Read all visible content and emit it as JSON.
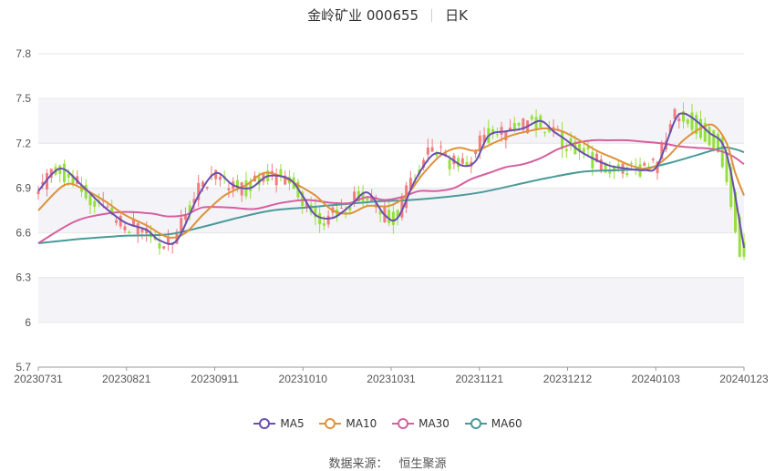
{
  "title": {
    "stock": "金岭矿业 000655",
    "period": "日K"
  },
  "legend": {
    "ma5": "MA5",
    "ma10": "MA10",
    "ma30": "MA30",
    "ma60": "MA60"
  },
  "source": {
    "label": "数据来源：",
    "name": "恒生聚源"
  },
  "colors": {
    "up": "#f07d7d",
    "down": "#95e03b",
    "ma5": "#6a4faf",
    "ma10": "#e0913a",
    "ma30": "#d65f9f",
    "ma60": "#4a9a9a",
    "grid": "#e6e6e6",
    "band": "#f4f4f8"
  },
  "chart_data": {
    "type": "candlestick",
    "ylim": [
      5.7,
      7.8
    ],
    "y_ticks": [
      "5.7",
      "6",
      "6.3",
      "6.6",
      "6.9",
      "7.2",
      "7.5",
      "7.8"
    ],
    "x_ticks": [
      "20230731",
      "20230821",
      "20230911",
      "20231010",
      "20231031",
      "20231121",
      "20231212",
      "20240103",
      "20240123"
    ],
    "ma_points": {
      "MA5": [
        [
          0,
          6.88
        ],
        [
          5,
          7.03
        ],
        [
          10,
          6.92
        ],
        [
          15,
          6.78
        ],
        [
          20,
          6.67
        ],
        [
          25,
          6.62
        ],
        [
          28,
          6.55
        ],
        [
          32,
          6.55
        ],
        [
          37,
          6.85
        ],
        [
          41,
          7.0
        ],
        [
          45,
          6.92
        ],
        [
          49,
          6.9
        ],
        [
          53,
          6.98
        ],
        [
          58,
          6.96
        ],
        [
          61,
          6.85
        ],
        [
          64,
          6.72
        ],
        [
          68,
          6.7
        ],
        [
          72,
          6.78
        ],
        [
          76,
          6.87
        ],
        [
          80,
          6.72
        ],
        [
          83,
          6.7
        ],
        [
          87,
          6.95
        ],
        [
          91,
          7.12
        ],
        [
          94,
          7.12
        ],
        [
          98,
          7.05
        ],
        [
          101,
          7.08
        ],
        [
          104,
          7.25
        ],
        [
          108,
          7.28
        ],
        [
          112,
          7.3
        ],
        [
          116,
          7.35
        ],
        [
          119,
          7.28
        ],
        [
          122,
          7.22
        ],
        [
          125,
          7.15
        ],
        [
          128,
          7.1
        ],
        [
          132,
          7.05
        ],
        [
          136,
          7.03
        ],
        [
          140,
          7.02
        ],
        [
          143,
          7.05
        ],
        [
          147,
          7.35
        ],
        [
          149,
          7.4
        ],
        [
          152,
          7.35
        ],
        [
          155,
          7.27
        ],
        [
          158,
          7.2
        ],
        [
          160,
          7.0
        ],
        [
          163,
          6.5
        ]
      ],
      "MA10": [
        [
          0,
          6.75
        ],
        [
          6,
          6.92
        ],
        [
          10,
          6.9
        ],
        [
          15,
          6.82
        ],
        [
          20,
          6.72
        ],
        [
          25,
          6.65
        ],
        [
          30,
          6.57
        ],
        [
          34,
          6.6
        ],
        [
          38,
          6.72
        ],
        [
          43,
          6.85
        ],
        [
          48,
          6.92
        ],
        [
          52,
          7.0
        ],
        [
          56,
          6.98
        ],
        [
          60,
          6.92
        ],
        [
          64,
          6.85
        ],
        [
          68,
          6.75
        ],
        [
          72,
          6.73
        ],
        [
          76,
          6.78
        ],
        [
          81,
          6.78
        ],
        [
          85,
          6.85
        ],
        [
          89,
          7.0
        ],
        [
          93,
          7.12
        ],
        [
          97,
          7.17
        ],
        [
          101,
          7.15
        ],
        [
          105,
          7.2
        ],
        [
          109,
          7.25
        ],
        [
          113,
          7.28
        ],
        [
          117,
          7.3
        ],
        [
          121,
          7.28
        ],
        [
          125,
          7.22
        ],
        [
          129,
          7.15
        ],
        [
          133,
          7.1
        ],
        [
          137,
          7.05
        ],
        [
          141,
          7.03
        ],
        [
          145,
          7.1
        ],
        [
          149,
          7.22
        ],
        [
          153,
          7.3
        ],
        [
          156,
          7.32
        ],
        [
          159,
          7.2
        ],
        [
          161,
          7.0
        ],
        [
          163,
          6.85
        ]
      ],
      "MA30": [
        [
          0,
          6.53
        ],
        [
          8,
          6.67
        ],
        [
          14,
          6.72
        ],
        [
          20,
          6.74
        ],
        [
          26,
          6.73
        ],
        [
          30,
          6.71
        ],
        [
          34,
          6.72
        ],
        [
          38,
          6.77
        ],
        [
          44,
          6.77
        ],
        [
          50,
          6.76
        ],
        [
          56,
          6.8
        ],
        [
          62,
          6.82
        ],
        [
          68,
          6.8
        ],
        [
          72,
          6.8
        ],
        [
          76,
          6.84
        ],
        [
          80,
          6.82
        ],
        [
          84,
          6.84
        ],
        [
          88,
          6.88
        ],
        [
          92,
          6.88
        ],
        [
          96,
          6.9
        ],
        [
          100,
          6.96
        ],
        [
          104,
          7.0
        ],
        [
          108,
          7.04
        ],
        [
          112,
          7.06
        ],
        [
          116,
          7.1
        ],
        [
          120,
          7.16
        ],
        [
          124,
          7.2
        ],
        [
          128,
          7.22
        ],
        [
          132,
          7.22
        ],
        [
          136,
          7.22
        ],
        [
          140,
          7.21
        ],
        [
          144,
          7.2
        ],
        [
          148,
          7.18
        ],
        [
          152,
          7.17
        ],
        [
          156,
          7.16
        ],
        [
          160,
          7.12
        ],
        [
          163,
          7.06
        ]
      ],
      "MA60": [
        [
          0,
          6.53
        ],
        [
          10,
          6.56
        ],
        [
          20,
          6.58
        ],
        [
          30,
          6.59
        ],
        [
          38,
          6.64
        ],
        [
          46,
          6.7
        ],
        [
          54,
          6.75
        ],
        [
          62,
          6.77
        ],
        [
          70,
          6.79
        ],
        [
          78,
          6.81
        ],
        [
          86,
          6.82
        ],
        [
          94,
          6.84
        ],
        [
          102,
          6.87
        ],
        [
          110,
          6.92
        ],
        [
          118,
          6.97
        ],
        [
          126,
          7.01
        ],
        [
          134,
          7.02
        ],
        [
          140,
          7.03
        ],
        [
          146,
          7.07
        ],
        [
          152,
          7.12
        ],
        [
          158,
          7.17
        ],
        [
          161,
          7.16
        ],
        [
          163,
          7.14
        ]
      ]
    }
  }
}
